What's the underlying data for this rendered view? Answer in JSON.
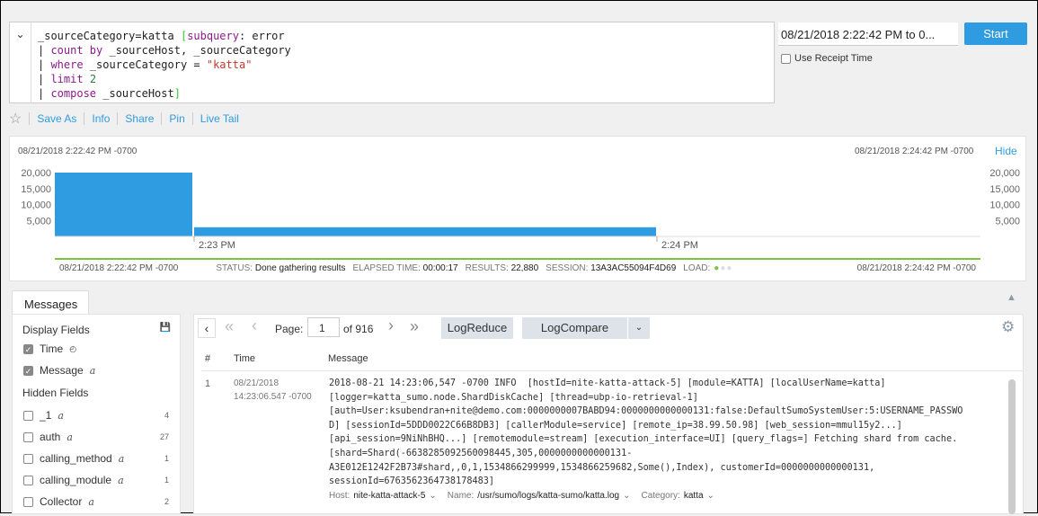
{
  "query": {
    "lines": [
      [
        {
          "t": "_sourceCategory=katta "
        },
        {
          "t": "[",
          "c": "br"
        },
        {
          "t": "subquery",
          "c": "kw"
        },
        {
          "t": ": error"
        }
      ],
      [
        {
          "t": "| "
        },
        {
          "t": "count by",
          "c": "kw"
        },
        {
          "t": " _sourceHost, _sourceCategory"
        }
      ],
      [
        {
          "t": "| "
        },
        {
          "t": "where",
          "c": "kw"
        },
        {
          "t": " _sourceCategory = "
        },
        {
          "t": "\"katta\"",
          "c": "str"
        }
      ],
      [
        {
          "t": "| "
        },
        {
          "t": "limit",
          "c": "kw"
        },
        {
          "t": " "
        },
        {
          "t": "2",
          "c": "num"
        }
      ],
      [
        {
          "t": "| "
        },
        {
          "t": "compose",
          "c": "kw"
        },
        {
          "t": " _sourceHost"
        },
        {
          "t": "]",
          "c": "br"
        }
      ]
    ]
  },
  "time_range": "08/21/2018 2:22:42 PM to 0...",
  "start_label": "Start",
  "use_receipt_time": "Use Receipt Time",
  "toolbar": {
    "save_as": "Save As",
    "info": "Info",
    "share": "Share",
    "pin": "Pin",
    "live_tail": "Live Tail"
  },
  "chart_header": {
    "start": "08/21/2018 2:22:42 PM -0700",
    "end": "08/21/2018 2:24:42 PM -0700",
    "hide": "Hide"
  },
  "chart_data": {
    "type": "bar",
    "categories": [
      "2:22:42 PM",
      "2:23 PM"
    ],
    "values": [
      20000,
      2880
    ],
    "yticks": [
      "20,000",
      "15,000",
      "10,000",
      "5,000"
    ],
    "xticks": [
      "2:23 PM",
      "2:24 PM"
    ],
    "ylim": [
      0,
      20000
    ],
    "color": "#2f9be0"
  },
  "status": {
    "start": "08/21/2018 2:22:42 PM -0700",
    "end": "08/21/2018 2:24:42 PM -0700",
    "status_label": "STATUS:",
    "status": "Done gathering results",
    "elapsed_label": "ELAPSED TIME:",
    "elapsed": "00:00:17",
    "results_label": "RESULTS:",
    "results": "22,880",
    "session_label": "SESSION:",
    "session": "13A3AC55094F4D69",
    "load_label": "LOAD:"
  },
  "tab": "Messages",
  "fields": {
    "display_title": "Display Fields",
    "display": [
      {
        "name": "Time"
      },
      {
        "name": "Message"
      }
    ],
    "hidden_title": "Hidden Fields",
    "hidden": [
      {
        "name": "_1",
        "count": "4"
      },
      {
        "name": "auth",
        "count": "27"
      },
      {
        "name": "calling_method",
        "count": "1"
      },
      {
        "name": "calling_module",
        "count": "1"
      },
      {
        "name": "Collector",
        "count": "2"
      }
    ]
  },
  "pager": {
    "page_label": "Page:",
    "page": "1",
    "of": "of 916",
    "logreduce": "LogReduce",
    "logcompare": "LogCompare"
  },
  "table": {
    "headers": [
      "#",
      "Time",
      "Message"
    ],
    "rows": [
      {
        "num": "1",
        "date": "08/21/2018",
        "time": "14:23:06.547 -0700",
        "message": "2018-08-21 14:23:06,547 -0700 INFO  [hostId=nite-katta-attack-5] [module=KATTA] [localUserName=katta]\n[logger=katta_sumo.node.ShardDiskCache] [thread=ubp-io-retrieval-1]\n[auth=User:ksubendran+nite@demo.com:0000000007BABD94:0000000000000131:false:DefaultSumoSystemUser:5:USERNAME_PASSWO\nD] [sessionId=5DDD0022C66B8DB3] [callerModule=service] [remote_ip=38.99.50.98] [web_session=mmul15y2...]\n[api_session=9NiNhBHQ...] [remotemodule=stream] [execution_interface=UI] [query_flags=] Fetching shard from cache.\n[shard=Shard(-6638285092560098445,305,0000000000000131-\nA3E012E1242F2B73#shard,,0,1,1534866299999,1534866259682,Some(),Index), customerId=0000000000000131,\nsessionId=6763562364738178483]",
        "host_label": "Host:",
        "host": "nite-katta-attack-5",
        "name_label": "Name:",
        "name": "/usr/sumo/logs/katta-sumo/katta.log",
        "cat_label": "Category:",
        "category": "katta"
      }
    ]
  }
}
